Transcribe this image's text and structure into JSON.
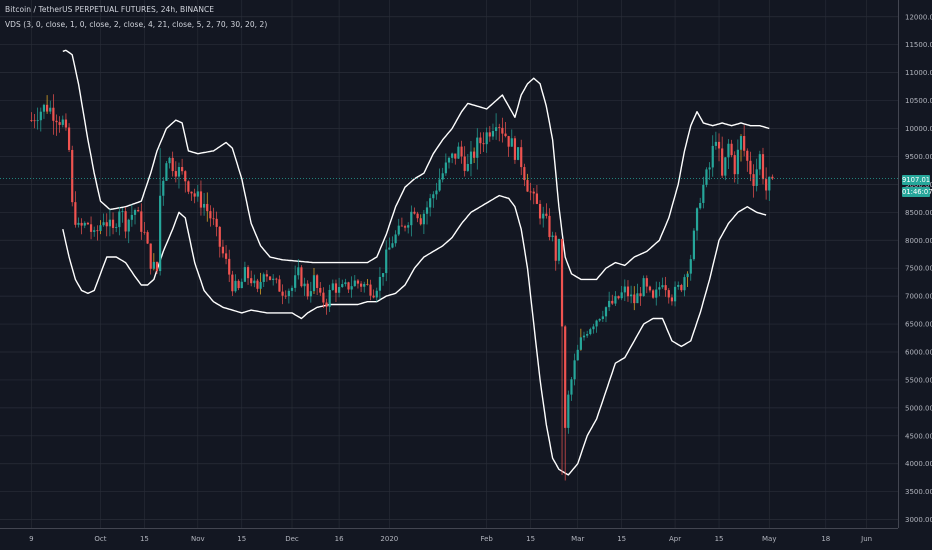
{
  "header": {
    "title": "Bitcoin / TetherUS PERPETUAL FUTURES, 24h, BINANCE",
    "indicator": "VDS (3, 0, close, 1, 0, close, 2, close, 4, 21, close, 5, 2, 70, 30, 20, 2)"
  },
  "price_tag": {
    "price": "9107.01",
    "timer": "01:46:07",
    "color": "#26a69a"
  },
  "colors": {
    "background": "#131722",
    "grid": "#2a2e39",
    "up": "#26a69a",
    "down": "#ef5350",
    "band": "#ffffff",
    "axis_text": "#b2b5be",
    "wick": "#f0b429"
  },
  "chart_data": {
    "type": "candlestick",
    "title": "Bitcoin / TetherUS PERPETUAL FUTURES, 24h, BINANCE",
    "x_tick_labels": [
      "9",
      "Oct",
      "15",
      "Nov",
      "15",
      "Dec",
      "16",
      "2020",
      "Feb",
      "15",
      "Mar",
      "15",
      "Apr",
      "15",
      "May",
      "18",
      "Jun"
    ],
    "x_ticks": [
      {
        "label": "9",
        "day": 0
      },
      {
        "label": "Oct",
        "day": 22
      },
      {
        "label": "15",
        "day": 36
      },
      {
        "label": "Nov",
        "day": 53
      },
      {
        "label": "15",
        "day": 67
      },
      {
        "label": "Dec",
        "day": 83
      },
      {
        "label": "16",
        "day": 98
      },
      {
        "label": "2020",
        "day": 114
      },
      {
        "label": "Feb",
        "day": 145
      },
      {
        "label": "15",
        "day": 159
      },
      {
        "label": "Mar",
        "day": 174
      },
      {
        "label": "15",
        "day": 188
      },
      {
        "label": "Apr",
        "day": 205
      },
      {
        "label": "15",
        "day": 219
      },
      {
        "label": "May",
        "day": 235
      },
      {
        "label": "18",
        "day": 253
      },
      {
        "label": "Jun",
        "day": 266
      }
    ],
    "y_tick_labels": [
      "12000.00",
      "11500.00",
      "11000.00",
      "10500.00",
      "10000.00",
      "9500.00",
      "9000.00",
      "8500.00",
      "8000.00",
      "7500.00",
      "7000.00",
      "6500.00",
      "6000.00",
      "5500.00",
      "5000.00",
      "4500.00",
      "4000.00",
      "3500.00",
      "3000.00"
    ],
    "ylim": [
      2850,
      12300
    ],
    "xlim": [
      -10,
      276
    ],
    "grid": true,
    "price_key_points": [
      [
        0,
        10150
      ],
      [
        2,
        10300
      ],
      [
        5,
        10400
      ],
      [
        8,
        10250
      ],
      [
        10,
        10100
      ],
      [
        12,
        9600
      ],
      [
        13,
        8600
      ],
      [
        15,
        8200
      ],
      [
        18,
        8300
      ],
      [
        20,
        8050
      ],
      [
        23,
        8400
      ],
      [
        26,
        8150
      ],
      [
        28,
        8600
      ],
      [
        30,
        8300
      ],
      [
        33,
        8550
      ],
      [
        36,
        8100
      ],
      [
        38,
        7600
      ],
      [
        40,
        7450
      ],
      [
        41,
        8800
      ],
      [
        43,
        9500
      ],
      [
        46,
        9300
      ],
      [
        49,
        9100
      ],
      [
        52,
        8800
      ],
      [
        55,
        8650
      ],
      [
        58,
        8300
      ],
      [
        60,
        7900
      ],
      [
        62,
        7600
      ],
      [
        64,
        7200
      ],
      [
        66,
        7100
      ],
      [
        68,
        7400
      ],
      [
        70,
        7300
      ],
      [
        72,
        7050
      ],
      [
        74,
        7500
      ],
      [
        77,
        7250
      ],
      [
        80,
        7100
      ],
      [
        83,
        7150
      ],
      [
        85,
        7400
      ],
      [
        88,
        7050
      ],
      [
        90,
        7300
      ],
      [
        92,
        6950
      ],
      [
        94,
        6900
      ],
      [
        96,
        7200
      ],
      [
        98,
        7100
      ],
      [
        100,
        7150
      ],
      [
        103,
        7250
      ],
      [
        106,
        7200
      ],
      [
        109,
        7100
      ],
      [
        111,
        7300
      ],
      [
        113,
        7700
      ],
      [
        115,
        8000
      ],
      [
        118,
        8200
      ],
      [
        120,
        8400
      ],
      [
        122,
        8600
      ],
      [
        124,
        8400
      ],
      [
        127,
        8700
      ],
      [
        130,
        9100
      ],
      [
        133,
        9400
      ],
      [
        136,
        9600
      ],
      [
        139,
        9300
      ],
      [
        142,
        9700
      ],
      [
        145,
        9900
      ],
      [
        148,
        10200
      ],
      [
        151,
        9900
      ],
      [
        153,
        9700
      ],
      [
        156,
        9400
      ],
      [
        158,
        9000
      ],
      [
        160,
        8700
      ],
      [
        162,
        8500
      ],
      [
        164,
        8300
      ],
      [
        166,
        8000
      ],
      [
        167,
        7700
      ],
      [
        168,
        7900
      ],
      [
        169,
        6500
      ],
      [
        170,
        4600
      ],
      [
        171,
        5200
      ],
      [
        173,
        5800
      ],
      [
        175,
        6200
      ],
      [
        177,
        6400
      ],
      [
        180,
        6600
      ],
      [
        183,
        6800
      ],
      [
        186,
        6900
      ],
      [
        189,
        7100
      ],
      [
        192,
        6900
      ],
      [
        195,
        7200
      ],
      [
        198,
        6900
      ],
      [
        201,
        7300
      ],
      [
        204,
        7000
      ],
      [
        207,
        7200
      ],
      [
        210,
        7700
      ],
      [
        213,
        8800
      ],
      [
        216,
        9300
      ],
      [
        218,
        9900
      ],
      [
        220,
        9100
      ],
      [
        222,
        9700
      ],
      [
        224,
        9300
      ],
      [
        226,
        9800
      ],
      [
        228,
        9400
      ],
      [
        230,
        9100
      ],
      [
        232,
        9500
      ],
      [
        234,
        8900
      ],
      [
        236,
        9100
      ]
    ],
    "upper_band_key_points": [
      [
        10,
        11380
      ],
      [
        11,
        11400
      ],
      [
        13,
        11320
      ],
      [
        15,
        10800
      ],
      [
        18,
        9800
      ],
      [
        20,
        9200
      ],
      [
        22,
        8700
      ],
      [
        25,
        8550
      ],
      [
        30,
        8600
      ],
      [
        35,
        8700
      ],
      [
        38,
        9200
      ],
      [
        40,
        9600
      ],
      [
        43,
        10000
      ],
      [
        46,
        10150
      ],
      [
        48,
        10100
      ],
      [
        50,
        9600
      ],
      [
        53,
        9550
      ],
      [
        58,
        9600
      ],
      [
        62,
        9750
      ],
      [
        64,
        9650
      ],
      [
        67,
        9100
      ],
      [
        70,
        8300
      ],
      [
        73,
        7900
      ],
      [
        76,
        7700
      ],
      [
        80,
        7650
      ],
      [
        90,
        7600
      ],
      [
        100,
        7600
      ],
      [
        107,
        7600
      ],
      [
        110,
        7700
      ],
      [
        113,
        8100
      ],
      [
        116,
        8600
      ],
      [
        119,
        8950
      ],
      [
        122,
        9100
      ],
      [
        125,
        9200
      ],
      [
        128,
        9550
      ],
      [
        131,
        9800
      ],
      [
        134,
        10000
      ],
      [
        137,
        10300
      ],
      [
        139,
        10450
      ],
      [
        142,
        10400
      ],
      [
        145,
        10350
      ],
      [
        148,
        10500
      ],
      [
        150,
        10600
      ],
      [
        152,
        10400
      ],
      [
        154,
        10200
      ],
      [
        156,
        10600
      ],
      [
        158,
        10800
      ],
      [
        160,
        10900
      ],
      [
        162,
        10800
      ],
      [
        164,
        10400
      ],
      [
        166,
        9800
      ],
      [
        168,
        8600
      ],
      [
        170,
        7700
      ],
      [
        172,
        7400
      ],
      [
        175,
        7300
      ],
      [
        180,
        7300
      ],
      [
        183,
        7500
      ],
      [
        186,
        7600
      ],
      [
        189,
        7550
      ],
      [
        192,
        7700
      ],
      [
        196,
        7800
      ],
      [
        200,
        8000
      ],
      [
        203,
        8400
      ],
      [
        206,
        9000
      ],
      [
        208,
        9600
      ],
      [
        210,
        10050
      ],
      [
        212,
        10300
      ],
      [
        214,
        10100
      ],
      [
        217,
        10050
      ],
      [
        220,
        10100
      ],
      [
        223,
        10050
      ],
      [
        226,
        10100
      ],
      [
        229,
        10050
      ],
      [
        232,
        10050
      ],
      [
        235,
        10000
      ]
    ],
    "lower_band_key_points": [
      [
        10,
        8200
      ],
      [
        12,
        7700
      ],
      [
        14,
        7300
      ],
      [
        16,
        7100
      ],
      [
        18,
        7050
      ],
      [
        20,
        7100
      ],
      [
        22,
        7400
      ],
      [
        24,
        7700
      ],
      [
        27,
        7700
      ],
      [
        30,
        7600
      ],
      [
        33,
        7350
      ],
      [
        35,
        7200
      ],
      [
        37,
        7200
      ],
      [
        39,
        7300
      ],
      [
        42,
        7800
      ],
      [
        45,
        8200
      ],
      [
        47,
        8500
      ],
      [
        49,
        8400
      ],
      [
        52,
        7600
      ],
      [
        55,
        7100
      ],
      [
        58,
        6900
      ],
      [
        61,
        6800
      ],
      [
        64,
        6750
      ],
      [
        67,
        6700
      ],
      [
        70,
        6750
      ],
      [
        75,
        6700
      ],
      [
        78,
        6700
      ],
      [
        83,
        6700
      ],
      [
        86,
        6600
      ],
      [
        88,
        6700
      ],
      [
        91,
        6800
      ],
      [
        95,
        6850
      ],
      [
        100,
        6850
      ],
      [
        104,
        6850
      ],
      [
        107,
        6900
      ],
      [
        110,
        6900
      ],
      [
        113,
        7000
      ],
      [
        116,
        7050
      ],
      [
        119,
        7200
      ],
      [
        122,
        7500
      ],
      [
        125,
        7700
      ],
      [
        128,
        7800
      ],
      [
        131,
        7900
      ],
      [
        134,
        8050
      ],
      [
        137,
        8300
      ],
      [
        140,
        8500
      ],
      [
        143,
        8600
      ],
      [
        146,
        8700
      ],
      [
        149,
        8800
      ],
      [
        152,
        8750
      ],
      [
        154,
        8600
      ],
      [
        156,
        8200
      ],
      [
        158,
        7500
      ],
      [
        160,
        6500
      ],
      [
        162,
        5500
      ],
      [
        164,
        4700
      ],
      [
        166,
        4100
      ],
      [
        168,
        3900
      ],
      [
        171,
        3800
      ],
      [
        174,
        4000
      ],
      [
        177,
        4500
      ],
      [
        180,
        4800
      ],
      [
        183,
        5300
      ],
      [
        186,
        5800
      ],
      [
        189,
        5900
      ],
      [
        192,
        6200
      ],
      [
        195,
        6500
      ],
      [
        198,
        6600
      ],
      [
        201,
        6600
      ],
      [
        204,
        6200
      ],
      [
        207,
        6100
      ],
      [
        210,
        6200
      ],
      [
        213,
        6700
      ],
      [
        216,
        7300
      ],
      [
        219,
        8000
      ],
      [
        222,
        8300
      ],
      [
        225,
        8500
      ],
      [
        228,
        8600
      ],
      [
        231,
        8500
      ],
      [
        234,
        8450
      ]
    ]
  }
}
